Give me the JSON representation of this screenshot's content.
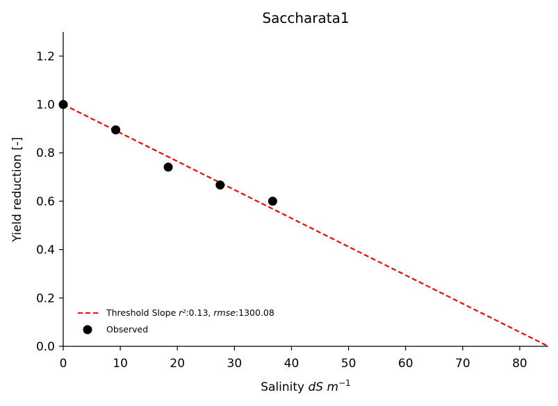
{
  "chart_data": {
    "type": "scatter",
    "title": "Saccharata1",
    "xlabel": {
      "prefix": "Salinity ",
      "var": "dS m",
      "sup": "−1"
    },
    "ylabel": "Yield reduction [-]",
    "xlim": [
      0,
      85
    ],
    "ylim": [
      0,
      1.3
    ],
    "xticks": [
      0,
      10,
      20,
      30,
      40,
      50,
      60,
      70,
      80
    ],
    "yticks": [
      0.0,
      0.2,
      0.4,
      0.6,
      0.8,
      1.0,
      1.2
    ],
    "grid": false,
    "legend_position": "lower-left",
    "series": [
      {
        "name": "Observed",
        "kind": "scatter",
        "color": "#000000",
        "x": [
          0,
          9.2,
          18.4,
          27.5,
          36.7
        ],
        "y": [
          1.0,
          0.895,
          0.741,
          0.667,
          0.6
        ]
      },
      {
        "name": "Threshold Slope",
        "kind": "line",
        "style": "dashed",
        "color": "#ff0000",
        "x": [
          0,
          85
        ],
        "y": [
          1.0,
          0.0
        ],
        "legend_label": {
          "prefix": "Threshold Slope ",
          "r2_symbol": "r²",
          "r2_value": ":0.13, ",
          "rmse_symbol": "rmse",
          "rmse_value": ":1300.08"
        }
      }
    ]
  }
}
